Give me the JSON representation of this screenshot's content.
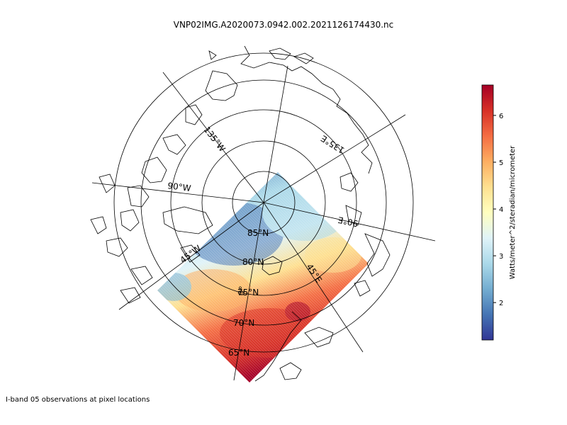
{
  "title": "VNP02IMG.A2020073.0942.002.2021126174430.nc",
  "caption": "I-band 05 observations at pixel locations",
  "colorbar": {
    "label": "Watts/meter^2/steradian/micrometer",
    "ticks": [
      "2",
      "3",
      "4",
      "5",
      "6"
    ],
    "range": [
      1.2,
      6.65
    ],
    "colormap": "RdYlBu_r",
    "colors": [
      "#313695",
      "#4575b4",
      "#74add1",
      "#abd9e9",
      "#e0f3f8",
      "#ffffbf",
      "#fee090",
      "#fdae61",
      "#f46d43",
      "#d73027",
      "#a50026"
    ]
  },
  "map": {
    "projection": "north polar stereographic",
    "parallel_labels": [
      "85°N",
      "80°N",
      "75°N",
      "70°N",
      "65°N"
    ],
    "meridian_labels": [
      "135°W",
      "90°W",
      "45°W",
      "0°",
      "45°E",
      "90°E",
      "135°E"
    ],
    "coastline_color": "#000000"
  }
}
